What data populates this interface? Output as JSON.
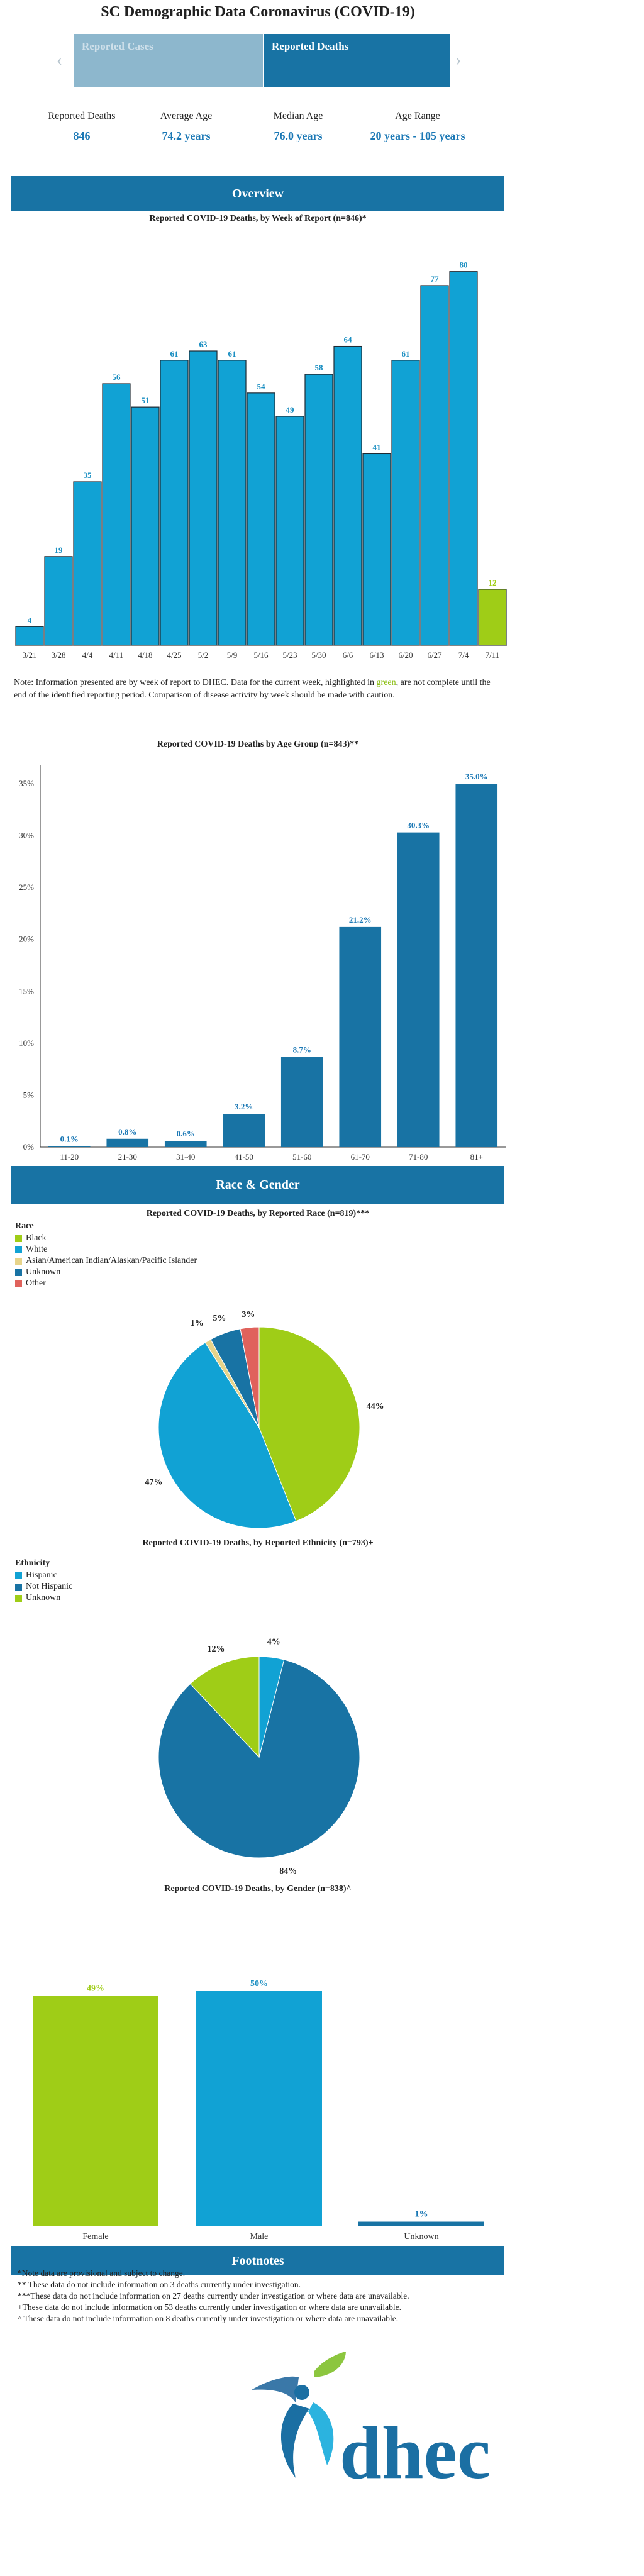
{
  "page": {
    "title": "SC Demographic Data Coronavirus (COVID-19)"
  },
  "tabs": [
    {
      "label": "Reported Cases",
      "active": false
    },
    {
      "label": "Reported Deaths",
      "active": true
    }
  ],
  "nav": {
    "prev_icon": "chevron-left-icon",
    "next_icon": "chevron-right-icon"
  },
  "stats": [
    {
      "label": "Reported Deaths",
      "value": "846"
    },
    {
      "label": "Average Age",
      "value": "74.2 years"
    },
    {
      "label": "Median Age",
      "value": "76.0 years"
    },
    {
      "label": "Age Range",
      "value": "20 years - 105 years"
    }
  ],
  "sections": {
    "overview": "Overview",
    "race_gender": "Race & Gender",
    "footnotes": "Footnotes"
  },
  "colors": {
    "blue": "#11a2d4",
    "dark_blue": "#1873a4",
    "green": "#9fcd17",
    "yellow": "#e7d48a",
    "red": "#e0625c"
  },
  "note": {
    "before": "Note: Information presented are by week of report to DHEC. Data for the current week, highlighted in ",
    "highlight": "green",
    "after": ", are not complete until the end of the identified reporting period. Comparison of disease activity by week should be made with caution."
  },
  "chart_data": [
    {
      "type": "bar",
      "title": "Reported COVID-19 Deaths, by Week of Report (n=846)*",
      "categories": [
        "3/21",
        "3/28",
        "4/4",
        "4/11",
        "4/18",
        "4/25",
        "5/2",
        "5/9",
        "5/16",
        "5/23",
        "5/30",
        "6/6",
        "6/13",
        "6/20",
        "6/27",
        "7/4",
        "7/11"
      ],
      "values": [
        4,
        19,
        35,
        56,
        51,
        61,
        63,
        61,
        54,
        49,
        58,
        64,
        41,
        61,
        77,
        80,
        12
      ],
      "highlight_last": true,
      "ylim": [
        0,
        84
      ]
    },
    {
      "type": "bar",
      "title": "Reported COVID-19 Deaths by Age Group (n=843)**",
      "categories": [
        "11-20",
        "21-30",
        "31-40",
        "41-50",
        "51-60",
        "61-70",
        "71-80",
        "81+"
      ],
      "values": [
        0.1,
        0.8,
        0.6,
        3.2,
        8.7,
        21.2,
        30.3,
        35.0
      ],
      "value_labels": [
        "0.1%",
        "0.8%",
        "0.6%",
        "3.2%",
        "8.7%",
        "21.2%",
        "30.3%",
        "35.0%"
      ],
      "yticks": [
        "0%",
        "5%",
        "10%",
        "15%",
        "20%",
        "25%",
        "30%",
        "35%"
      ],
      "ylim": [
        0,
        35
      ]
    },
    {
      "type": "pie",
      "title": "Reported COVID-19 Deaths, by Reported Race (n=819)***",
      "legend_title": "Race",
      "legend": [
        "Black",
        "White",
        "Asian/American Indian/Alaskan/Pacific Islander",
        "Unknown",
        "Other"
      ],
      "slices": [
        {
          "name": "Black",
          "value": 44,
          "label": "44%"
        },
        {
          "name": "White",
          "value": 47,
          "label": "47%"
        },
        {
          "name": "Asian/American Indian/Alaskan/Pacific Islander",
          "value": 1,
          "label": "1%"
        },
        {
          "name": "Unknown",
          "value": 5,
          "label": "5%"
        },
        {
          "name": "Other",
          "value": 3,
          "label": "3%"
        }
      ]
    },
    {
      "type": "pie",
      "title": "Reported COVID-19 Deaths, by Reported Ethnicity (n=793)+",
      "legend_title": "Ethnicity",
      "legend": [
        "Hispanic",
        "Not Hispanic",
        "Unknown"
      ],
      "slices": [
        {
          "name": "Hispanic",
          "value": 4,
          "label": "4%"
        },
        {
          "name": "Not Hispanic",
          "value": 84,
          "label": "84%"
        },
        {
          "name": "Unknown",
          "value": 12,
          "label": "12%"
        }
      ]
    },
    {
      "type": "bar",
      "title": "Reported COVID-19 Deaths, by Gender (n=838)^",
      "categories": [
        "Female",
        "Male",
        "Unknown"
      ],
      "values": [
        49,
        50,
        1
      ],
      "value_labels": [
        "49%",
        "50%",
        "1%"
      ],
      "ylim": [
        0,
        50
      ]
    }
  ],
  "footnotes": [
    "*Note data are provisional and subject to change.",
    "** These data do not include information on 3 deaths currently under investigation.",
    "***These data do not include information on 27 deaths currently under investigation or where data are unavailable.",
    "+These data do not include information on 53 deaths currently under investigation or where data are unavailable.",
    "^ These data do not include information on 8 deaths currently under investigation or where data are unavailable."
  ],
  "logo": {
    "text": "dhec"
  }
}
